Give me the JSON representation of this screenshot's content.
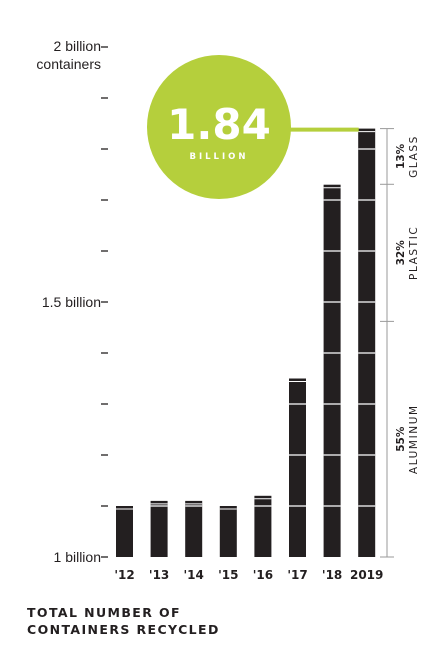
{
  "chart_data": {
    "type": "bar",
    "title": "TOTAL NUMBER OF CONTAINERS RECYCLED",
    "title_lines": [
      "TOTAL NUMBER OF",
      "CONTAINERS RECYCLED"
    ],
    "categories": [
      "'12",
      "'13",
      "'14",
      "'15",
      "'16",
      "'17",
      "'18",
      "2019"
    ],
    "values": [
      1.1,
      1.11,
      1.11,
      1.1,
      1.12,
      1.35,
      1.73,
      1.84
    ],
    "ylim": [
      1,
      2
    ],
    "yticks": [
      {
        "value": 2,
        "label": "2 billion containers",
        "lines": [
          "2 billion",
          "containers"
        ]
      },
      {
        "value": 1.9,
        "label": ""
      },
      {
        "value": 1.8,
        "label": ""
      },
      {
        "value": 1.7,
        "label": ""
      },
      {
        "value": 1.6,
        "label": ""
      },
      {
        "value": 1.5,
        "label": "1.5 billion",
        "lines": [
          "1.5 billion"
        ]
      },
      {
        "value": 1.4,
        "label": ""
      },
      {
        "value": 1.3,
        "label": ""
      },
      {
        "value": 1.2,
        "label": ""
      },
      {
        "value": 1.1,
        "label": ""
      },
      {
        "value": 1.0,
        "label": "1 billion",
        "lines": [
          "1 billion"
        ]
      }
    ],
    "grid": false,
    "callout": {
      "value": "1.84",
      "unit": "BILLION",
      "color": "#b5cf3c"
    },
    "composition": [
      {
        "material": "GLASS",
        "percent": "13%",
        "share": 0.13
      },
      {
        "material": "PLASTIC",
        "percent": "32%",
        "share": 0.32
      },
      {
        "material": "ALUMINUM",
        "percent": "55%",
        "share": 0.55
      }
    ],
    "colors": {
      "bar": "#231f20",
      "accent": "#b5cf3c",
      "text": "#231f20",
      "muted": "#9a9a9a"
    }
  }
}
